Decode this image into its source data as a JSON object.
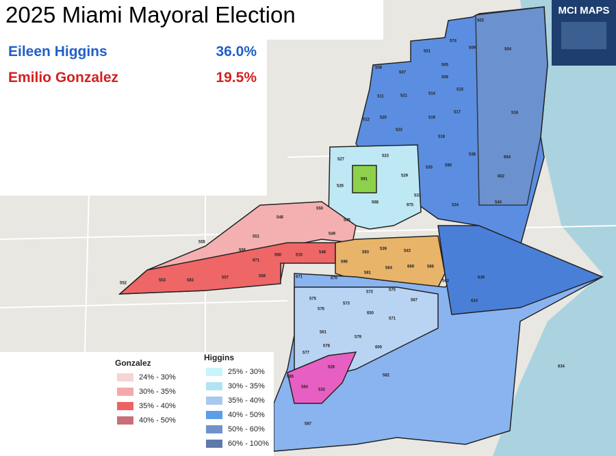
{
  "title": "2025 Miami Mayoral Election",
  "results": [
    {
      "name": "Eileen Higgins",
      "share": "36.0%"
    },
    {
      "name": "Emilio Gonzalez",
      "share": "19.5%"
    }
  ],
  "logo": "MCI MAPS",
  "legend": {
    "gonzalez": {
      "title": "Gonzalez",
      "items": [
        "24% - 30%",
        "30% - 35%",
        "35% - 40%",
        "40% - 50%"
      ]
    },
    "higgins": {
      "title": "Higgins",
      "items": [
        "25% - 30%",
        "30% - 35%",
        "35% - 40%",
        "40% - 50%",
        "50% - 60%",
        "60% - 100%"
      ]
    }
  },
  "precincts": [
    "502",
    "574",
    "509",
    "504",
    "501",
    "505",
    "506",
    "508",
    "507",
    "521",
    "514",
    "515",
    "511",
    "512",
    "520",
    "519",
    "517",
    "516",
    "522",
    "518",
    "527",
    "523",
    "535",
    "590",
    "538",
    "664",
    "662",
    "591",
    "526",
    "529",
    "568",
    "975",
    "533",
    "534",
    "544",
    "546",
    "550",
    "545",
    "549",
    "551",
    "555",
    "556",
    "560",
    "510",
    "548",
    "593",
    "539",
    "543",
    "564",
    "669",
    "566",
    "581",
    "596",
    "552",
    "553",
    "583",
    "557",
    "559",
    "971",
    "671",
    "670",
    "575",
    "576",
    "573",
    "572",
    "570",
    "650",
    "571",
    "567",
    "563",
    "639",
    "624",
    "634",
    "561",
    "578",
    "579",
    "600",
    "577",
    "528",
    "582",
    "584",
    "532",
    "585",
    "587"
  ]
}
